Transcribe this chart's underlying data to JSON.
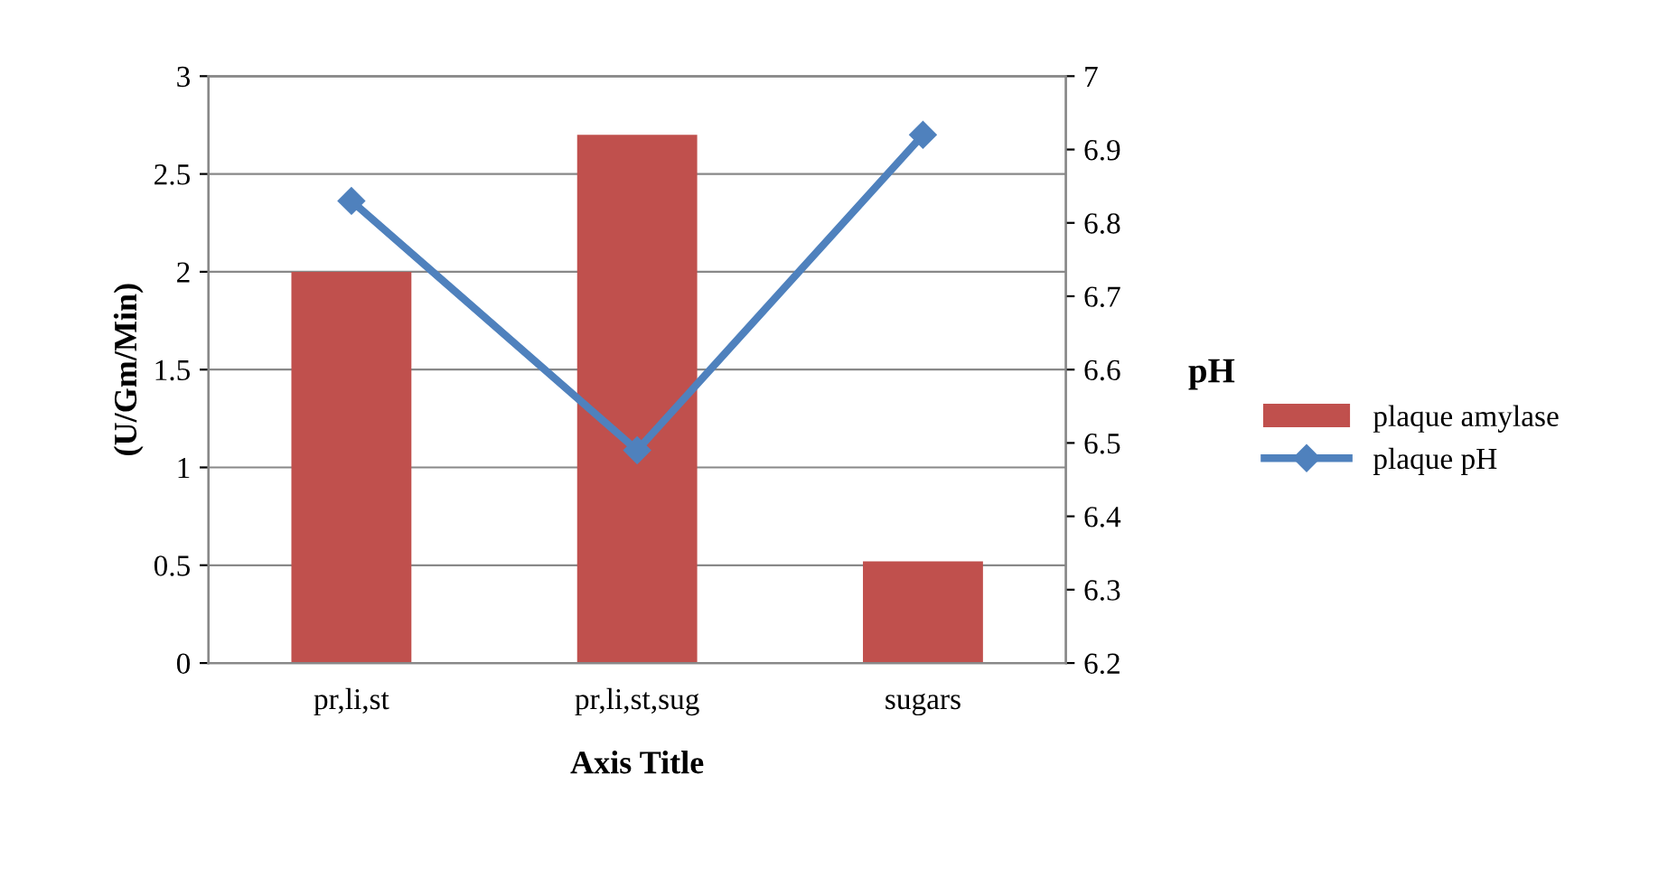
{
  "chart_data": {
    "type": "bar",
    "categories": [
      "pr,li,st",
      "pr,li,st,sug",
      "sugars"
    ],
    "xlabel": "Axis Title",
    "ylabel": "(U/Gm/Min)",
    "y2label": "pH",
    "series": [
      {
        "name": "plaque amylase",
        "color": "#c0504d",
        "values": [
          2.0,
          2.7,
          0.52
        ]
      },
      {
        "name": "plaque pH",
        "type": "line",
        "axis": "y2",
        "color": "#4f81bd",
        "marker": "diamond",
        "values": [
          6.83,
          6.49,
          6.92
        ]
      }
    ],
    "ylim": [
      0,
      3
    ],
    "yticks": [
      0,
      0.5,
      1,
      1.5,
      2,
      2.5,
      3
    ],
    "y2lim": [
      6.2,
      7
    ],
    "y2ticks": [
      6.2,
      6.3,
      6.4,
      6.5,
      6.6,
      6.7,
      6.8,
      6.9,
      7
    ],
    "grid": "y",
    "legend": "right"
  }
}
